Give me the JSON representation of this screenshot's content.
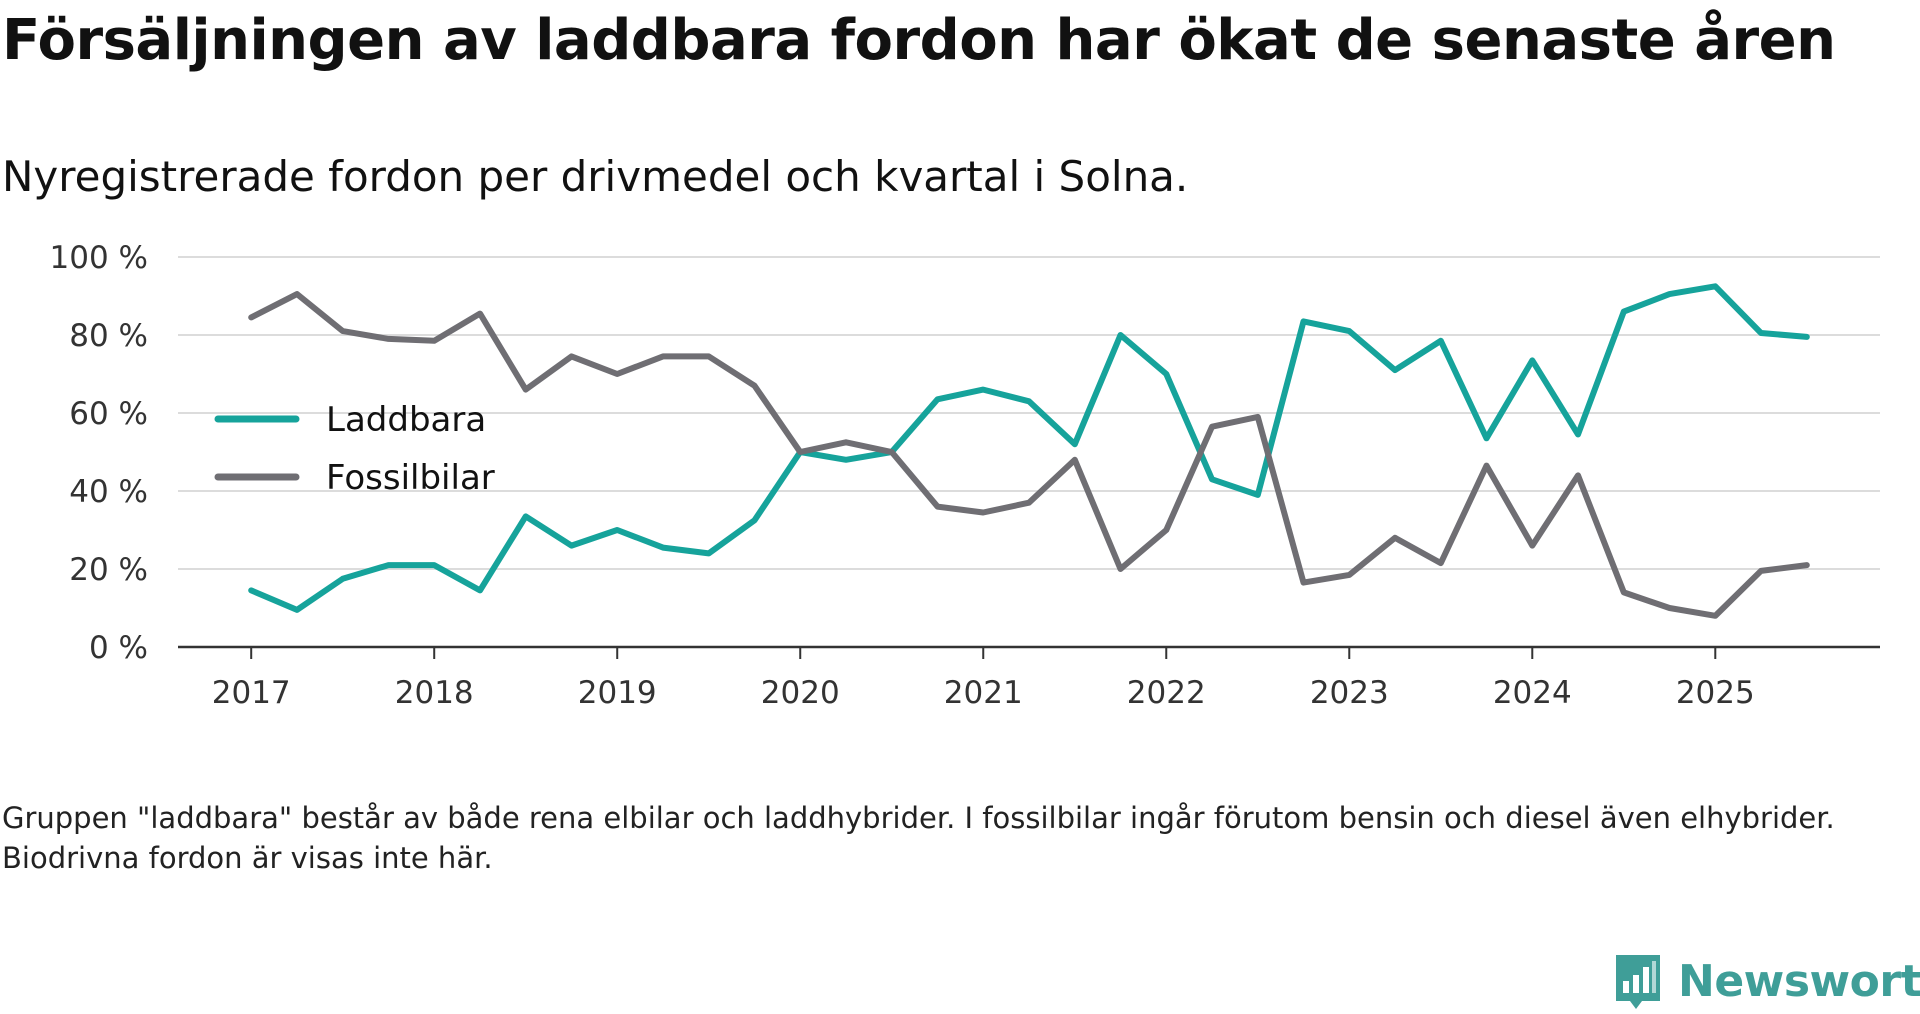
{
  "title": "Försäljningen av laddbara fordon har ökat de senaste åren",
  "subtitle": "Nyregistrerade fordon per drivmedel och kvartal i Solna.",
  "note": "Gruppen \"laddbara\" består av både rena elbilar och laddhybrider. I fossilbilar ingår förutom bensin och diesel även elhybrider. Biodrivna fordon är visas inte här.",
  "brand": {
    "name": "Newsworthy",
    "color": "#3f9e98"
  },
  "chart_data": {
    "type": "line",
    "title": "Försäljningen av laddbara fordon har ökat de senaste åren",
    "xlabel": "",
    "ylabel": "",
    "x_start": 2017.0,
    "x_step": 0.25,
    "xlim": [
      2016.6,
      2025.9
    ],
    "ylim": [
      0,
      100
    ],
    "y_ticks": [
      0,
      20,
      40,
      60,
      80,
      100
    ],
    "y_tick_labels": [
      "0 %",
      "20 %",
      "40 %",
      "60 %",
      "80 %",
      "100 %"
    ],
    "x_ticks": [
      2017,
      2018,
      2019,
      2020,
      2021,
      2022,
      2023,
      2024,
      2025
    ],
    "x_tick_labels": [
      "2017",
      "2018",
      "2019",
      "2020",
      "2021",
      "2022",
      "2023",
      "2024",
      "2025"
    ],
    "legend_position": "middle-left",
    "grid": true,
    "series": [
      {
        "name": "Laddbara",
        "color": "#16a39b",
        "values": [
          14.5,
          9.5,
          17.5,
          21,
          21,
          14.5,
          33.5,
          26,
          30,
          25.5,
          24,
          32.5,
          50,
          48,
          50,
          63.5,
          66,
          63,
          52,
          80,
          70,
          43,
          39,
          83.5,
          81,
          71,
          78.5,
          53.5,
          73.5,
          54.5,
          86,
          90.5,
          92.5,
          80.5,
          79.5
        ]
      },
      {
        "name": "Fossilbilar",
        "color": "#6f6e73",
        "values": [
          84.5,
          90.5,
          81,
          79,
          78.5,
          85.5,
          66,
          74.5,
          70,
          74.5,
          74.5,
          67,
          50,
          52.5,
          50,
          36,
          34.5,
          37,
          48,
          20,
          30,
          56.5,
          59,
          16.5,
          18.5,
          28,
          21.5,
          46.5,
          26,
          44,
          14,
          10,
          8,
          19.5,
          21
        ]
      }
    ]
  }
}
